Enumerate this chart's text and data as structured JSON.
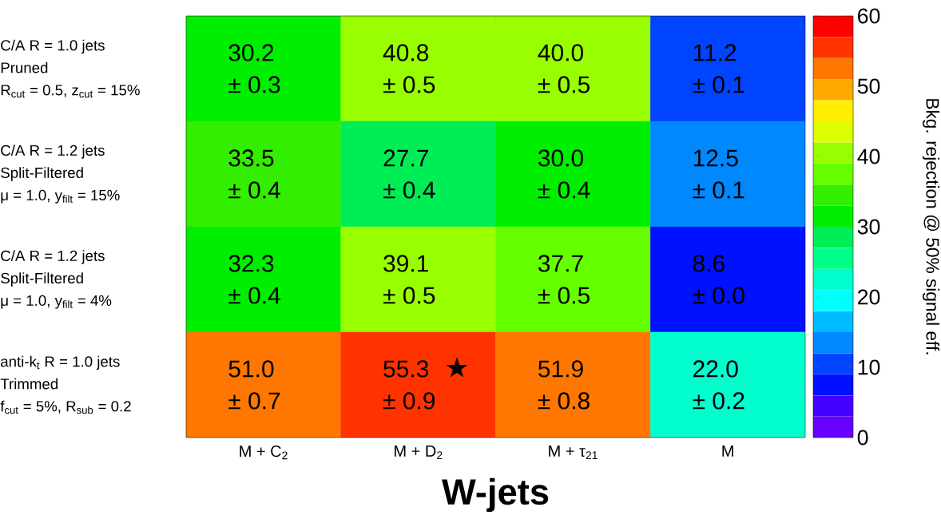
{
  "chart_data": {
    "type": "heatmap",
    "xlabel": "W-jets",
    "clabel": "Bkg. rejection @ 50% signal eff.",
    "categories": [
      "M + C$_{2}$",
      "M + D$_{2}$",
      "M + τ$_{21}$",
      "M"
    ],
    "y_categories": [
      "C/A R = 1.0 jets\nPruned\nR$_{cut}$ = 0.5, z$_{cut}$ = 15%",
      "C/A R = 1.2 jets\nSplit-Filtered\nμ = 1.0, y$_{filt}$ = 15%",
      "C/A R = 1.2 jets\nSplit-Filtered\nμ = 1.0, y$_{filt}$ = 4%",
      "anti-k$_{t}$ R = 1.0 jets\nTrimmed\nf$_{cut}$ = 5%, R$_{sub}$ = 0.2"
    ],
    "cells": [
      [
        30.2,
        40.8,
        40.0,
        11.2
      ],
      [
        33.5,
        27.7,
        30.0,
        12.5
      ],
      [
        32.3,
        39.1,
        37.7,
        8.6
      ],
      [
        51.0,
        55.3,
        51.9,
        22.0
      ]
    ],
    "cell_labels": [
      [
        "30.2\n± 0.3",
        "40.8\n± 0.5",
        "40.0\n± 0.5",
        "11.2\n± 0.1"
      ],
      [
        "33.5\n± 0.4",
        "27.7\n± 0.4",
        "30.0\n± 0.4",
        "12.5\n± 0.1"
      ],
      [
        "32.3\n± 0.4",
        "39.1\n± 0.5",
        "37.7\n± 0.5",
        "8.6\n± 0.0"
      ],
      [
        "51.0\n± 0.7",
        "55.3\n± 0.9",
        "51.9\n± 0.8",
        "22.0\n± 0.2"
      ]
    ],
    "clim": [
      0,
      60
    ],
    "cticks": [
      0,
      10,
      20,
      30,
      40,
      50,
      60
    ],
    "annotations": [
      "★"
    ]
  }
}
